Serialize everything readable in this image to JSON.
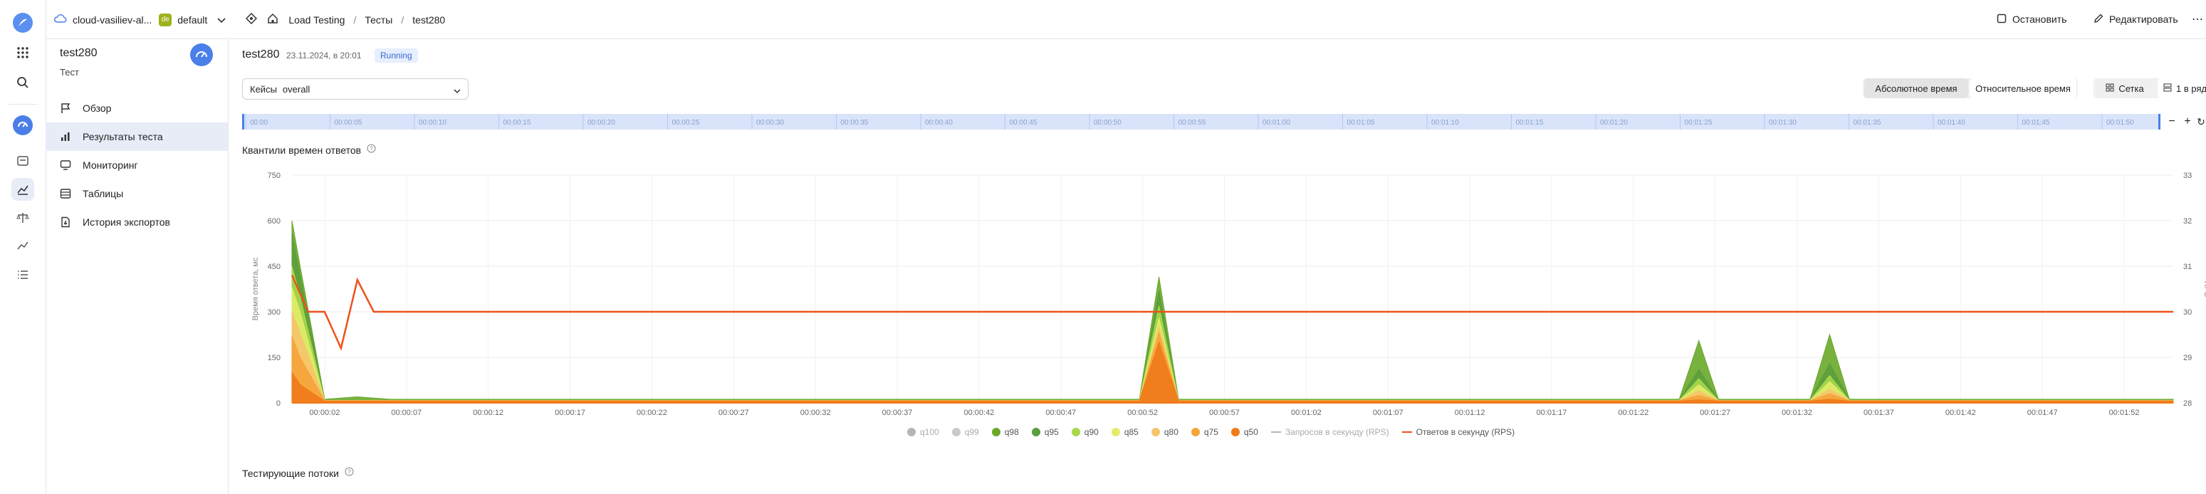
{
  "header": {
    "cloud_name": "cloud-vasiliev-al...",
    "folder_badge": "de",
    "folder_name": "default",
    "breadcrumbs": [
      "Load Testing",
      "Тесты",
      "test280"
    ],
    "stop_label": "Остановить",
    "edit_label": "Редактировать"
  },
  "sidebar": {
    "title": "test280",
    "subtitle": "Тест",
    "items": [
      {
        "label": "Обзор",
        "icon": "flag-icon"
      },
      {
        "label": "Результаты теста",
        "icon": "chart-icon",
        "active": true
      },
      {
        "label": "Мониторинг",
        "icon": "monitor-icon"
      },
      {
        "label": "Таблицы",
        "icon": "table-icon"
      },
      {
        "label": "История экспортов",
        "icon": "export-icon"
      }
    ]
  },
  "main": {
    "test_title": "test280",
    "date": "23.11.2024, в 20:01",
    "status": "Running",
    "cases_label": "Кейсы",
    "cases_value": "overall",
    "time_modes": [
      "Абсолютное время",
      "Относительное время"
    ],
    "view_modes": [
      "Сетка",
      "1 в ряд"
    ],
    "timeline_ticks": [
      "00:00",
      "00:00:05",
      "00:00:10",
      "00:00:15",
      "00:00:20",
      "00:00:25",
      "00:00:30",
      "00:00:35",
      "00:00:40",
      "00:00:45",
      "00:00:50",
      "00:00:55",
      "00:01:00",
      "00:01:05",
      "00:01:10",
      "00:01:15",
      "00:01:20",
      "00:01:25",
      "00:01:30",
      "00:01:35",
      "00:01:40",
      "00:01:45",
      "00:01:50"
    ],
    "threads_title": "Тестирующие потоки"
  },
  "chart_data": {
    "type": "area",
    "title": "Квантили времен ответов",
    "ylabel": "Время ответа, мс",
    "y2label": "RPS",
    "ylim": [
      0,
      750
    ],
    "y2lim": [
      28,
      33
    ],
    "y_ticks": [
      0,
      150,
      300,
      450,
      600,
      750
    ],
    "y2_ticks": [
      28,
      29,
      30,
      31,
      32,
      33
    ],
    "x_ticks": [
      "00:00:02",
      "00:00:07",
      "00:00:12",
      "00:00:17",
      "00:00:22",
      "00:00:27",
      "00:00:32",
      "00:00:37",
      "00:00:42",
      "00:00:47",
      "00:00:52",
      "00:00:57",
      "00:01:02",
      "00:01:07",
      "00:01:12",
      "00:01:17",
      "00:01:22",
      "00:01:27",
      "00:01:32",
      "00:01:37",
      "00:01:42",
      "00:01:47",
      "00:01:52"
    ],
    "x_range": [
      0,
      115
    ],
    "grid": true,
    "legend_position": "bottom",
    "series": [
      {
        "name": "q100",
        "color": "#b5b5b5",
        "disabled": true
      },
      {
        "name": "q99",
        "color": "#c9c9c9",
        "disabled": true
      },
      {
        "name": "q98",
        "color": "#6aa82a",
        "points": [
          [
            0,
            600
          ],
          [
            0.5,
            450
          ],
          [
            2,
            12
          ],
          [
            4,
            20
          ],
          [
            6,
            12
          ],
          [
            115,
            12
          ]
        ],
        "peaks": [
          [
            53,
            415
          ],
          [
            86,
            205
          ],
          [
            94,
            225
          ]
        ]
      },
      {
        "name": "q95",
        "color": "#5b9e3c",
        "points": [
          [
            0,
            560
          ],
          [
            0.5,
            420
          ],
          [
            2,
            10
          ],
          [
            115,
            10
          ]
        ],
        "peaks": [
          [
            53,
            370
          ],
          [
            86,
            110
          ],
          [
            94,
            130
          ]
        ]
      },
      {
        "name": "q90",
        "color": "#a8d84a",
        "points": [
          [
            0,
            450
          ],
          [
            0.5,
            350
          ],
          [
            2,
            9
          ],
          [
            115,
            9
          ]
        ],
        "peaks": [
          [
            53,
            320
          ],
          [
            86,
            80
          ],
          [
            94,
            90
          ]
        ]
      },
      {
        "name": "q85",
        "color": "#e2ec6a",
        "points": [
          [
            0,
            380
          ],
          [
            0.5,
            300
          ],
          [
            2,
            8
          ],
          [
            115,
            8
          ]
        ],
        "peaks": [
          [
            53,
            280
          ],
          [
            86,
            60
          ],
          [
            94,
            70
          ]
        ]
      },
      {
        "name": "q80",
        "color": "#f6c46a",
        "points": [
          [
            0,
            300
          ],
          [
            0.5,
            230
          ],
          [
            2,
            8
          ],
          [
            115,
            8
          ]
        ],
        "peaks": [
          [
            53,
            250
          ],
          [
            86,
            40
          ],
          [
            94,
            45
          ]
        ]
      },
      {
        "name": "q75",
        "color": "#f5a33a",
        "points": [
          [
            0,
            220
          ],
          [
            0.5,
            150
          ],
          [
            2,
            7
          ],
          [
            115,
            7
          ]
        ],
        "peaks": [
          [
            53,
            230
          ],
          [
            86,
            25
          ],
          [
            94,
            30
          ]
        ]
      },
      {
        "name": "q50",
        "color": "#f07a1a",
        "points": [
          [
            0,
            100
          ],
          [
            0.5,
            60
          ],
          [
            2,
            6
          ],
          [
            115,
            6
          ]
        ],
        "peaks": [
          [
            53,
            200
          ],
          [
            86,
            10
          ],
          [
            94,
            12
          ]
        ]
      },
      {
        "name": "Запросов в секунду (RPS)",
        "color": "#b5b5b5",
        "disabled": true,
        "line": true
      },
      {
        "name": "Ответов в секунду (RPS)",
        "color": "#f0501a",
        "line": true,
        "axis": "y2",
        "points": [
          [
            0,
            30.8
          ],
          [
            1,
            30
          ],
          [
            2,
            30
          ],
          [
            3,
            29.2
          ],
          [
            4,
            30.7
          ],
          [
            5,
            30
          ],
          [
            115,
            30
          ]
        ]
      }
    ]
  }
}
